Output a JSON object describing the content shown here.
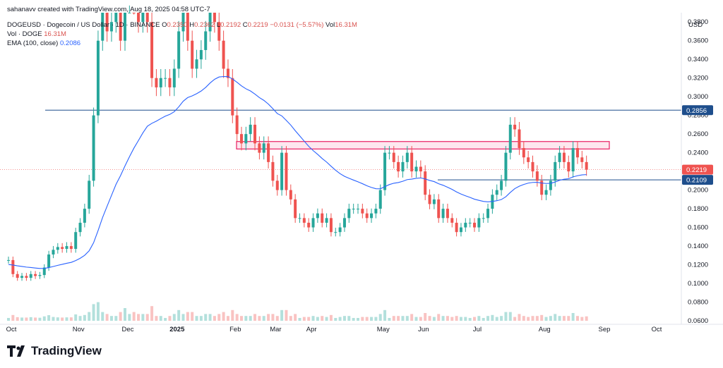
{
  "header": {
    "creator": "sahanavv created with TradingView.com, Aug 18, 2025 04:58 UTC-7",
    "symbol": "DOGEUSD · Dogecoin / US Dollar · 1D · BINANCE",
    "o_label": "O",
    "o_value": "0.2350",
    "h_label": "H",
    "h_value": "0.2362",
    "l_label": "L",
    "l_value": "0.2192",
    "c_label": "C",
    "c_value": "0.2219",
    "change": "−0.0131 (−5.57%)",
    "vol_label": "Vol",
    "vol_value": "16.31M",
    "vol_doge_label": "Vol · DOGE",
    "vol_doge_value": "16.31M",
    "ema_label": "EMA (100, close)",
    "ema_value": "0.2086"
  },
  "brand": "TradingView",
  "currency": "USD",
  "colors": {
    "up": "#26a69a",
    "down": "#ef5350",
    "ema": "#2962ff",
    "line": "#1e4e8c",
    "zone": "#e91e63"
  },
  "chart_data": {
    "type": "candlestick",
    "y_axis": {
      "min": 0.06,
      "max": 0.39,
      "ticks": [
        "0.3800",
        "0.3600",
        "0.3400",
        "0.3200",
        "0.3000",
        "0.2800",
        "0.2600",
        "0.2400",
        "0.2200",
        "0.2000",
        "0.1800",
        "0.1600",
        "0.1400",
        "0.1200",
        "0.1000",
        "0.0800",
        "0.0600"
      ]
    },
    "x_axis": {
      "labels": [
        "Oct",
        "Nov",
        "Dec",
        "2025",
        "Feb",
        "Mar",
        "Apr",
        "May",
        "Jun",
        "Jul",
        "Aug",
        "Sep",
        "Oct"
      ]
    },
    "price_labels": [
      {
        "value": "0.2856",
        "color": "#1e4e8c"
      },
      {
        "value": "0.2219",
        "color": "#ef5350"
      },
      {
        "value": "0.2109",
        "color": "#1e4e8c"
      }
    ],
    "horizontal_lines": [
      0.2856,
      0.2109
    ],
    "resistance_zone": [
      0.244,
      0.252
    ],
    "close_series": [
      [
        "Oct",
        0.125
      ],
      [
        "Oct",
        0.11
      ],
      [
        "Oct",
        0.106
      ],
      [
        "Oct",
        0.108
      ],
      [
        "Oct",
        0.106
      ],
      [
        "Oct",
        0.11
      ],
      [
        "Oct",
        0.108
      ],
      [
        "Oct",
        0.109
      ],
      [
        "Oct",
        0.117
      ],
      [
        "Oct",
        0.131
      ],
      [
        "Oct",
        0.136
      ],
      [
        "Oct",
        0.139
      ],
      [
        "Oct",
        0.137
      ],
      [
        "Oct",
        0.14
      ],
      [
        "Oct",
        0.137
      ],
      [
        "Nov",
        0.155
      ],
      [
        "Nov",
        0.165
      ],
      [
        "Nov",
        0.18
      ],
      [
        "Nov",
        0.21
      ],
      [
        "Nov",
        0.28
      ],
      [
        "Nov",
        0.36
      ],
      [
        "Nov",
        0.39
      ],
      [
        "Nov",
        0.37
      ],
      [
        "Nov",
        0.38
      ],
      [
        "Nov",
        0.39
      ],
      [
        "Nov",
        0.36
      ],
      [
        "Dec",
        0.41
      ],
      [
        "Dec",
        0.43
      ],
      [
        "Dec",
        0.4
      ],
      [
        "Dec",
        0.38
      ],
      [
        "Dec",
        0.4
      ],
      [
        "Dec",
        0.38
      ],
      [
        "Dec",
        0.32
      ],
      [
        "Dec",
        0.31
      ],
      [
        "Dec",
        0.32
      ],
      [
        "Dec",
        0.32
      ],
      [
        "Dec",
        0.31
      ],
      [
        "2025",
        0.33
      ],
      [
        "2025",
        0.37
      ],
      [
        "2025",
        0.39
      ],
      [
        "2025",
        0.36
      ],
      [
        "2025",
        0.33
      ],
      [
        "2025",
        0.34
      ],
      [
        "2025",
        0.35
      ],
      [
        "2025",
        0.37
      ],
      [
        "2025",
        0.39
      ],
      [
        "2025",
        0.38
      ],
      [
        "2025",
        0.36
      ],
      [
        "2025",
        0.33
      ],
      [
        "2025",
        0.32
      ],
      [
        "Feb",
        0.28
      ],
      [
        "Feb",
        0.26
      ],
      [
        "Feb",
        0.25
      ],
      [
        "Feb",
        0.26
      ],
      [
        "Feb",
        0.27
      ],
      [
        "Feb",
        0.25
      ],
      [
        "Feb",
        0.24
      ],
      [
        "Feb",
        0.25
      ],
      [
        "Feb",
        0.23
      ],
      [
        "Mar",
        0.21
      ],
      [
        "Mar",
        0.2
      ],
      [
        "Mar",
        0.24
      ],
      [
        "Mar",
        0.2
      ],
      [
        "Mar",
        0.19
      ],
      [
        "Mar",
        0.17
      ],
      [
        "Mar",
        0.17
      ],
      [
        "Mar",
        0.165
      ],
      [
        "Apr",
        0.16
      ],
      [
        "Apr",
        0.17
      ],
      [
        "Apr",
        0.175
      ],
      [
        "Apr",
        0.165
      ],
      [
        "Apr",
        0.17
      ],
      [
        "Apr",
        0.155
      ],
      [
        "Apr",
        0.155
      ],
      [
        "Apr",
        0.16
      ],
      [
        "Apr",
        0.17
      ],
      [
        "Apr",
        0.18
      ],
      [
        "Apr",
        0.18
      ],
      [
        "Apr",
        0.18
      ],
      [
        "Apr",
        0.175
      ],
      [
        "Apr",
        0.17
      ],
      [
        "Apr",
        0.175
      ],
      [
        "Apr",
        0.18
      ],
      [
        "May",
        0.2
      ],
      [
        "May",
        0.24
      ],
      [
        "May",
        0.24
      ],
      [
        "May",
        0.23
      ],
      [
        "May",
        0.22
      ],
      [
        "May",
        0.23
      ],
      [
        "May",
        0.24
      ],
      [
        "May",
        0.22
      ],
      [
        "May",
        0.225
      ],
      [
        "Jun",
        0.22
      ],
      [
        "Jun",
        0.195
      ],
      [
        "Jun",
        0.185
      ],
      [
        "Jun",
        0.19
      ],
      [
        "Jun",
        0.17
      ],
      [
        "Jun",
        0.18
      ],
      [
        "Jun",
        0.17
      ],
      [
        "Jun",
        0.165
      ],
      [
        "Jun",
        0.155
      ],
      [
        "Jun",
        0.16
      ],
      [
        "Jun",
        0.165
      ],
      [
        "Jun",
        0.165
      ],
      [
        "Jul",
        0.16
      ],
      [
        "Jul",
        0.17
      ],
      [
        "Jul",
        0.17
      ],
      [
        "Jul",
        0.18
      ],
      [
        "Jul",
        0.195
      ],
      [
        "Jul",
        0.2
      ],
      [
        "Jul",
        0.21
      ],
      [
        "Jul",
        0.24
      ],
      [
        "Jul",
        0.27
      ],
      [
        "Jul",
        0.265
      ],
      [
        "Jul",
        0.245
      ],
      [
        "Jul",
        0.235
      ],
      [
        "Jul",
        0.23
      ],
      [
        "Jul",
        0.22
      ],
      [
        "Jul",
        0.21
      ],
      [
        "Aug",
        0.195
      ],
      [
        "Aug",
        0.2
      ],
      [
        "Aug",
        0.21
      ],
      [
        "Aug",
        0.23
      ],
      [
        "Aug",
        0.24
      ],
      [
        "Aug",
        0.23
      ],
      [
        "Aug",
        0.22
      ],
      [
        "Aug",
        0.245
      ],
      [
        "Aug",
        0.235
      ],
      [
        "Aug",
        0.23
      ],
      [
        "Aug",
        0.2219
      ]
    ]
  }
}
